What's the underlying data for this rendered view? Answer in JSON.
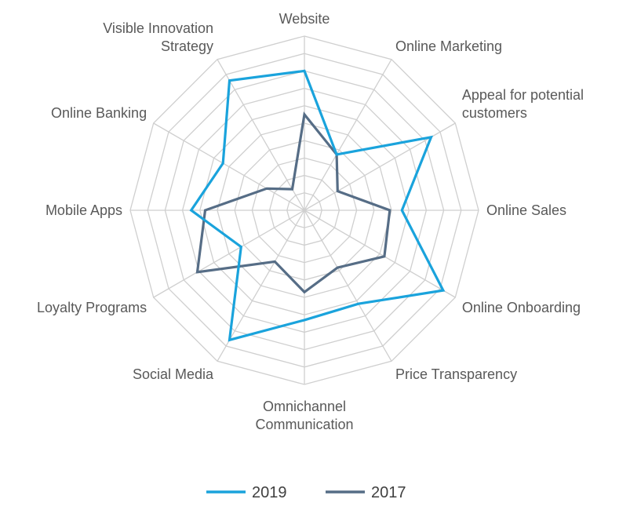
{
  "chart_data": {
    "type": "radar",
    "title": "",
    "categories": [
      "Website",
      "Online Marketing",
      "Appeal for potential customers",
      "Online Sales",
      "Online Onboarding",
      "Price Transparency",
      "Omnichannel Communication",
      "Social Media",
      "Loyalty Programs",
      "Mobile Apps",
      "Online Banking",
      "Visible Innovation Strategy"
    ],
    "category_lines": [
      [
        "Website"
      ],
      [
        "Online Marketing"
      ],
      [
        "Appeal for potential",
        "customers"
      ],
      [
        "Online Sales"
      ],
      [
        "Online Onboarding"
      ],
      [
        "Price Transparency"
      ],
      [
        "Omnichannel",
        "Communication"
      ],
      [
        "Social Media"
      ],
      [
        "Loyalty Programs"
      ],
      [
        "Mobile Apps"
      ],
      [
        "Online Banking"
      ],
      [
        "Visible Innovation",
        "Strategy"
      ]
    ],
    "rmax": 10,
    "grid_rings": 10,
    "grid": true,
    "legend_position": "bottom",
    "series": [
      {
        "name": "2019",
        "color": "#1aa3dc",
        "values": [
          8.0,
          3.7,
          8.4,
          5.6,
          9.2,
          6.2,
          6.3,
          8.6,
          4.2,
          6.5,
          5.4,
          8.6
        ]
      },
      {
        "name": "2017",
        "color": "#566d86",
        "values": [
          5.5,
          3.7,
          2.2,
          4.9,
          5.3,
          3.8,
          4.7,
          3.4,
          7.1,
          5.7,
          2.5,
          1.4
        ]
      }
    ]
  }
}
